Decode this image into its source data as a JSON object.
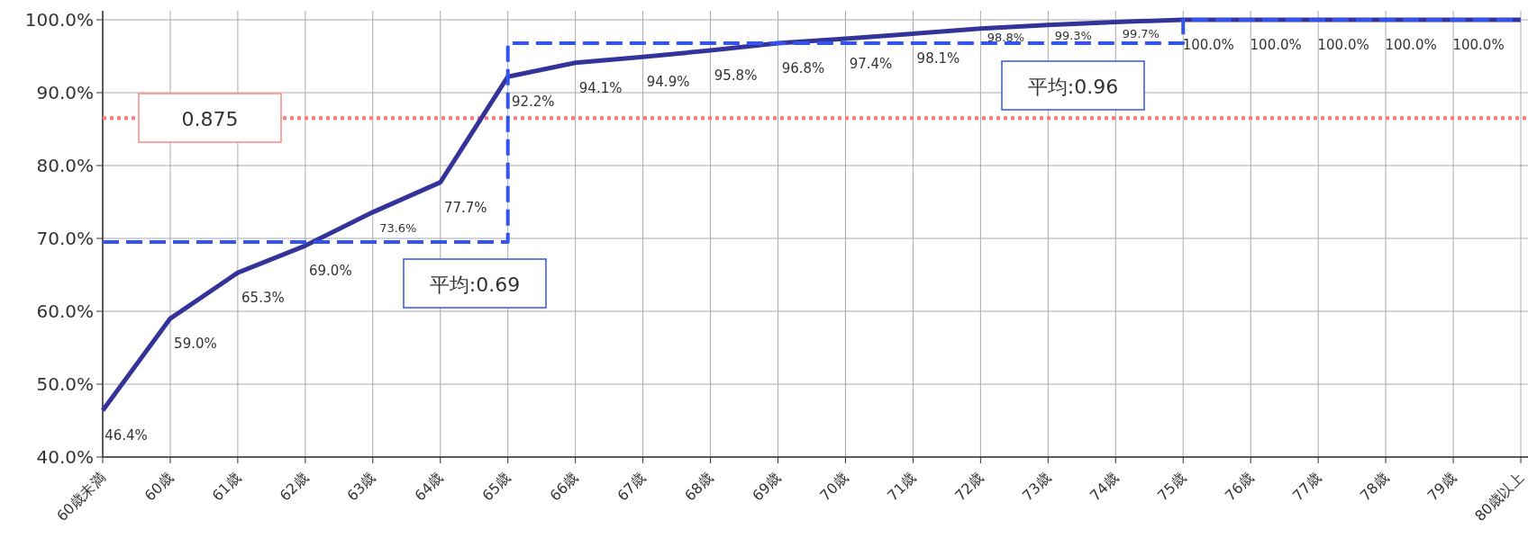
{
  "chart_data": {
    "type": "line",
    "categories": [
      "60歳未満",
      "60歳",
      "61歳",
      "62歳",
      "63歳",
      "64歳",
      "65歳",
      "66歳",
      "67歳",
      "68歳",
      "69歳",
      "70歳",
      "71歳",
      "72歳",
      "73歳",
      "74歳",
      "75歳",
      "76歳",
      "77歳",
      "78歳",
      "79歳",
      "80歳以上"
    ],
    "series": [
      {
        "color": "#333399",
        "values": [
          46.4,
          59.0,
          65.3,
          69.0,
          73.6,
          77.7,
          92.2,
          94.1,
          94.9,
          95.8,
          96.8,
          97.4,
          98.1,
          98.8,
          99.3,
          99.7,
          100.0,
          100.0,
          100.0,
          100.0,
          100.0,
          100.0
        ],
        "value_labels": [
          "46.4%",
          "59.0%",
          "65.3%",
          "69.0%",
          "73.6%",
          "77.7%",
          "92.2%",
          "94.1%",
          "94.9%",
          "95.8%",
          "96.8%",
          "97.4%",
          "98.1%",
          "98.8%",
          "99.3%",
          "99.7%",
          "100.0%",
          "100.0%",
          "100.0%",
          "100.0%",
          "100.0%",
          null
        ]
      },
      {
        "type": "step",
        "color": "#3355ee",
        "line_style": "dashed",
        "values": [
          69.5,
          69.5,
          69.5,
          69.5,
          69.5,
          69.5,
          96.8,
          96.8,
          96.8,
          96.8,
          96.8,
          96.8,
          96.8,
          96.8,
          96.8,
          96.8,
          100.0,
          100.0,
          100.0,
          100.0,
          100.0,
          100.0
        ]
      }
    ],
    "ylim": [
      40,
      100
    ],
    "yticks": [
      {
        "value": 40,
        "label": "40.0%"
      },
      {
        "value": 50,
        "label": "50.0%"
      },
      {
        "value": 60,
        "label": "60.0%"
      },
      {
        "value": 70,
        "label": "70.0%"
      },
      {
        "value": 80,
        "label": "80.0%"
      },
      {
        "value": 90,
        "label": "90.0%"
      },
      {
        "value": 100,
        "label": "100.0%"
      }
    ],
    "grid": true,
    "ref_lines": [
      {
        "axis": "y",
        "value": 86.5,
        "color": "#ff7777",
        "line_style": "dotted"
      }
    ],
    "annotations": [
      "平均:0.69",
      "平均:0.96",
      "0.875"
    ]
  }
}
